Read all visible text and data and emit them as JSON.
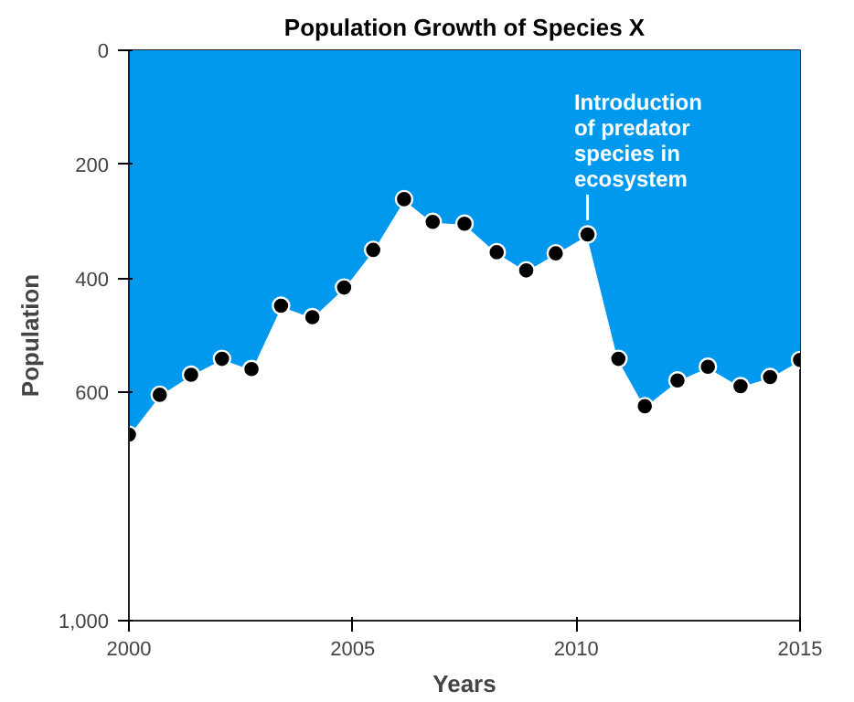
{
  "chart_data": {
    "type": "area",
    "title": "Population Growth of Species X",
    "xlabel": "Years",
    "ylabel": "Population",
    "x": [
      2000,
      2000.69,
      2001.39,
      2002.08,
      2002.74,
      2003.4,
      2004.1,
      2004.81,
      2005.46,
      2006.15,
      2006.79,
      2007.5,
      2008.22,
      2008.88,
      2009.54,
      2010.25,
      2010.94,
      2011.53,
      2012.26,
      2012.94,
      2013.67,
      2014.33,
      2015
    ],
    "series": [
      {
        "color": "#0099ee",
        "values": [
          674,
          604,
          569,
          541,
          559,
          448,
          468,
          416,
          350,
          261,
          301,
          304,
          354,
          386,
          356,
          323,
          541,
          624,
          579,
          555,
          589,
          573,
          543
        ]
      }
    ],
    "xlim": [
      2000,
      2015
    ],
    "xticks": [
      2000,
      2005,
      2010,
      2015
    ],
    "ylim": [
      1000,
      0
    ],
    "yticks": [
      0,
      200,
      400,
      600,
      {
        "value": 1000,
        "label": "1,000"
      }
    ],
    "grid": false,
    "marker": "circle",
    "annotations": [
      {
        "text": "Introduction\nof predator\nspecies in\necosystem",
        "x": 2010.25,
        "y": 323
      }
    ]
  }
}
